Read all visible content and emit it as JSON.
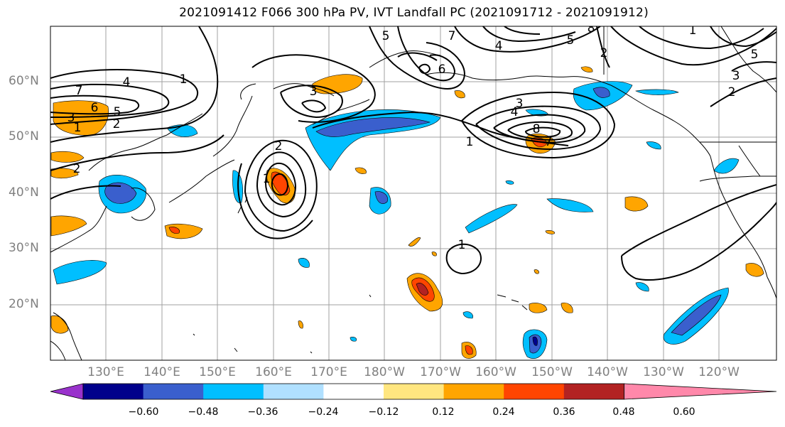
{
  "title": "2021091412 F066 300 hPa PV, IVT Landfall PC (2021091712 - 2021091912)",
  "lat_labels": [
    "60°N",
    "50°N",
    "40°N",
    "30°N",
    "20°N"
  ],
  "lon_labels": [
    "130°E",
    "140°E",
    "150°E",
    "160°E",
    "170°E",
    "180°W",
    "170°W",
    "160°W",
    "150°W",
    "140°W",
    "130°W",
    "120°W"
  ],
  "contour_labels": [
    "7",
    "4",
    "1",
    "6",
    "5",
    "3",
    "2",
    "1",
    "2",
    "2",
    "1",
    "5",
    "7",
    "4",
    "6",
    "8",
    "3",
    "5",
    "4",
    "3",
    "8",
    "7",
    "1",
    "2",
    "3",
    "5",
    "1",
    "2",
    "1"
  ],
  "colorbar": {
    "ticks": [
      "−0.60",
      "−0.48",
      "−0.36",
      "−0.24",
      "−0.12",
      "0.12",
      "0.24",
      "0.36",
      "0.48",
      "0.60"
    ],
    "colors": [
      "#9932cc",
      "#00008b",
      "#3a5fcd",
      "#00bfff",
      "#b0e0ff",
      "#ffffff",
      "#ffe680",
      "#ffa500",
      "#ff4500",
      "#b22222",
      "#ff88aa"
    ]
  }
}
